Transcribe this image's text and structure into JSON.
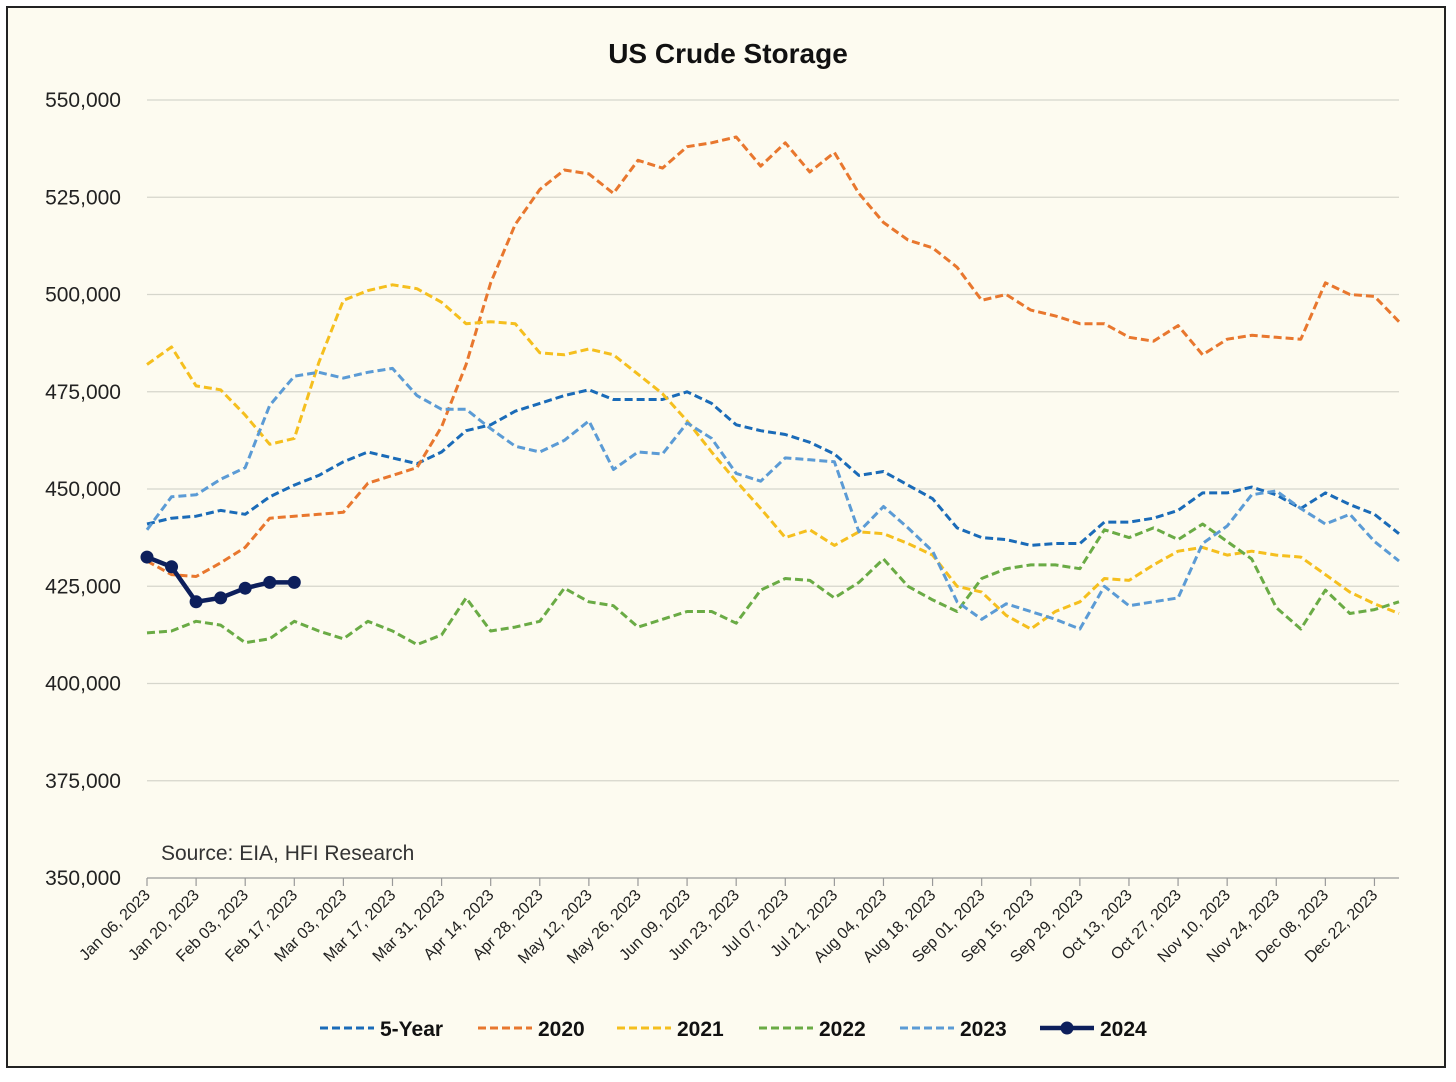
{
  "chart_data": {
    "type": "line",
    "title": "US Crude Storage",
    "note": "Source: EIA, HFI Research",
    "ylim": [
      350000,
      550000
    ],
    "yticks": [
      350000,
      375000,
      400000,
      425000,
      450000,
      475000,
      500000,
      525000,
      550000
    ],
    "ytick_labels": [
      "350,000",
      "375,000",
      "400,000",
      "425,000",
      "450,000",
      "475,000",
      "500,000",
      "525,000",
      "550,000"
    ],
    "xtick_labels": [
      "Jan 06, 2023",
      "Jan 20, 2023",
      "Feb 03, 2023",
      "Feb 17, 2023",
      "Mar 03, 2023",
      "Mar 17, 2023",
      "Mar 31, 2023",
      "Apr 14, 2023",
      "Apr 28, 2023",
      "May 12, 2023",
      "May 26, 2023",
      "Jun 09, 2023",
      "Jun 23, 2023",
      "Jul 07, 2023",
      "Jul 21, 2023",
      "Aug 04, 2023",
      "Aug 18, 2023",
      "Sep 01, 2023",
      "Sep 15, 2023",
      "Sep 29, 2023",
      "Oct 13, 2023",
      "Oct 27, 2023",
      "Nov 10, 2023",
      "Nov 24, 2023",
      "Dec 08, 2023",
      "Dec 22, 2023"
    ],
    "num_weeks": 52,
    "grid": true,
    "legend_position": "bottom",
    "series": [
      {
        "name": "5-Year",
        "color": "#1a6bb8",
        "style": "dashed",
        "values": [
          441000,
          442500,
          443000,
          444500,
          443500,
          448000,
          451000,
          453500,
          457000,
          459500,
          458000,
          456500,
          459500,
          465000,
          466500,
          470000,
          472000,
          474000,
          475500,
          473000,
          473000,
          473000,
          475000,
          472000,
          466500,
          465000,
          464000,
          462000,
          459000,
          453500,
          454500,
          451000,
          447500,
          440000,
          437500,
          437000,
          435500,
          436000,
          436000,
          441500,
          441500,
          442500,
          444500,
          449000,
          449000,
          450500,
          448500,
          445000,
          449000,
          446000,
          443500,
          438500
        ]
      },
      {
        "name": "2020",
        "color": "#e8772e",
        "style": "dashed",
        "values": [
          431500,
          428000,
          427500,
          431000,
          435000,
          442500,
          443000,
          443500,
          444000,
          451500,
          453500,
          455500,
          466000,
          482000,
          503000,
          518000,
          527000,
          532000,
          531000,
          526000,
          534500,
          532500,
          538000,
          539000,
          540500,
          533000,
          539000,
          531500,
          536500,
          526000,
          518500,
          514000,
          512000,
          507000,
          498500,
          500000,
          496000,
          494500,
          492500,
          492500,
          489000,
          488000,
          492000,
          484500,
          488500,
          489500,
          489000,
          488500,
          503000,
          500000,
          499500,
          493000
        ]
      },
      {
        "name": "2021",
        "color": "#f5bf1e",
        "style": "dashed",
        "values": [
          482000,
          486500,
          476500,
          475500,
          469000,
          461500,
          463000,
          482500,
          498500,
          501000,
          502500,
          501500,
          498000,
          492500,
          493000,
          492500,
          485000,
          484500,
          486000,
          484500,
          479500,
          474500,
          467500,
          459500,
          452000,
          445000,
          437500,
          439500,
          435500,
          439000,
          438500,
          436000,
          433000,
          425000,
          423500,
          417500,
          414000,
          418500,
          421000,
          427000,
          426500,
          430500,
          434000,
          435000,
          433000,
          434000,
          433000,
          432500,
          428000,
          423500,
          420500,
          418000
        ]
      },
      {
        "name": "2022",
        "color": "#6aab45",
        "style": "dashed",
        "values": [
          413000,
          413500,
          416000,
          415000,
          410500,
          411500,
          416000,
          413500,
          411500,
          416000,
          413500,
          410000,
          412500,
          422000,
          413500,
          414500,
          416000,
          424500,
          421000,
          420000,
          414500,
          416500,
          418500,
          418500,
          415500,
          424000,
          427000,
          426500,
          422000,
          426000,
          432000,
          425000,
          421500,
          418500,
          427000,
          429500,
          430500,
          430500,
          429500,
          439500,
          437500,
          440000,
          437000,
          441000,
          436500,
          432000,
          419500,
          414000,
          424000,
          418000,
          419000,
          421000
        ]
      },
      {
        "name": "2023",
        "color": "#5b9bd5",
        "style": "dashed",
        "values": [
          439500,
          448000,
          448500,
          452500,
          455500,
          471500,
          479000,
          480000,
          478500,
          480000,
          481000,
          474000,
          470500,
          470500,
          465500,
          461000,
          459500,
          462500,
          467500,
          455000,
          459500,
          459000,
          467000,
          463000,
          454000,
          452000,
          458000,
          457500,
          457000,
          439000,
          445500,
          440000,
          434000,
          421000,
          416500,
          420500,
          418500,
          416500,
          414000,
          425000,
          420000,
          421000,
          422000,
          436000,
          440500,
          448500,
          449500,
          445000,
          441000,
          443500,
          436500,
          431500
        ]
      },
      {
        "name": "2024",
        "color": "#0d1f5c",
        "style": "solid-markers",
        "values": [
          432500,
          430000,
          421000,
          422000,
          424500,
          426000,
          426000
        ]
      }
    ]
  }
}
